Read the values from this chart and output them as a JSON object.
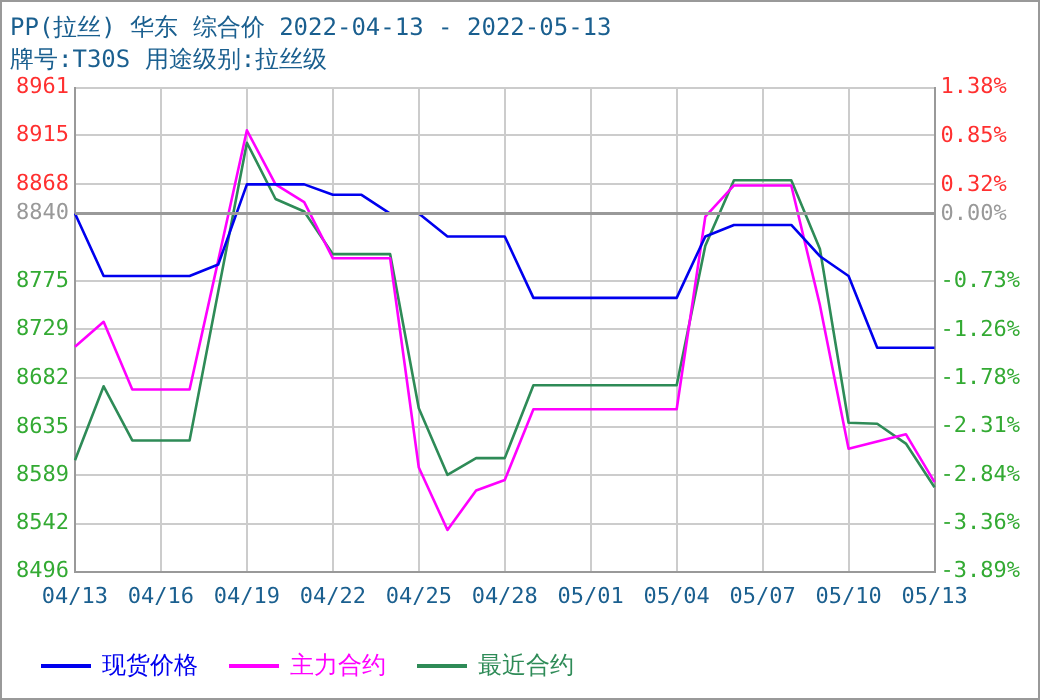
{
  "chart_data": {
    "type": "line",
    "title": "PP(拉丝) 华东 综合价 2022-04-13 - 2022-05-13",
    "subtitle": "牌号:T30S 用途级别:拉丝级",
    "categories": [
      "04/13",
      null,
      null,
      "04/16",
      null,
      null,
      "04/19",
      null,
      null,
      "04/22",
      null,
      null,
      "04/25",
      null,
      null,
      "04/28",
      null,
      null,
      "05/01",
      null,
      null,
      "05/04",
      null,
      null,
      "05/07",
      null,
      null,
      "05/10",
      null,
      null,
      "05/13"
    ],
    "series": [
      {
        "name": "现货价格",
        "color": "#0000ee",
        "values": [
          8840,
          8780,
          8780,
          8780,
          8780,
          8791,
          8868,
          8868,
          8868,
          8858,
          8858,
          8840,
          8840,
          8818,
          8818,
          8818,
          8759,
          8759,
          8759,
          8759,
          8759,
          8759,
          8818,
          8829,
          8829,
          8829,
          8799,
          8780,
          8711,
          8711,
          8711
        ]
      },
      {
        "name": "主力合约",
        "color": "#ff00ff",
        "values": [
          8712,
          8736,
          8671,
          8671,
          8671,
          8795,
          8920,
          8868,
          8851,
          8797,
          8797,
          8797,
          8596,
          8536,
          8574,
          8584,
          8652,
          8652,
          8652,
          8652,
          8652,
          8652,
          8837,
          8867,
          8867,
          8867,
          8752,
          8614,
          8621,
          8628,
          8582
        ]
      },
      {
        "name": "最近合约",
        "color": "#2e8b57",
        "values": [
          8603,
          8674,
          8622,
          8622,
          8622,
          8765,
          8908,
          8854,
          8842,
          8801,
          8801,
          8801,
          8653,
          8589,
          8605,
          8605,
          8675,
          8675,
          8675,
          8675,
          8675,
          8675,
          8809,
          8872,
          8872,
          8872,
          8806,
          8639,
          8638,
          8619,
          8577
        ]
      }
    ],
    "ylim": [
      8496,
      8961
    ],
    "yticks": [
      8496,
      8542,
      8589,
      8635,
      8682,
      8729,
      8775,
      8840,
      8868,
      8915,
      8961
    ],
    "y2lim": [
      -3.89,
      1.38
    ],
    "y2ticks": [
      {
        "value": -3.89,
        "label": "-3.89%"
      },
      {
        "value": -3.36,
        "label": "-3.36%"
      },
      {
        "value": -2.84,
        "label": "-2.84%"
      },
      {
        "value": -2.31,
        "label": "-2.31%"
      },
      {
        "value": -1.78,
        "label": "-1.78%"
      },
      {
        "value": -1.26,
        "label": "-1.26%"
      },
      {
        "value": -0.73,
        "label": "-0.73%"
      },
      {
        "value": 0,
        "label": "0.00%"
      },
      {
        "value": 0.32,
        "label": "0.32%"
      },
      {
        "value": 0.85,
        "label": "0.85%"
      },
      {
        "value": 1.38,
        "label": "1.38%"
      }
    ],
    "ref_lines": [
      {
        "axis": "y",
        "value": 8840,
        "color": "#999999"
      }
    ],
    "grid": true,
    "legend": "bottom",
    "marker": "none",
    "line_style": "solid"
  }
}
